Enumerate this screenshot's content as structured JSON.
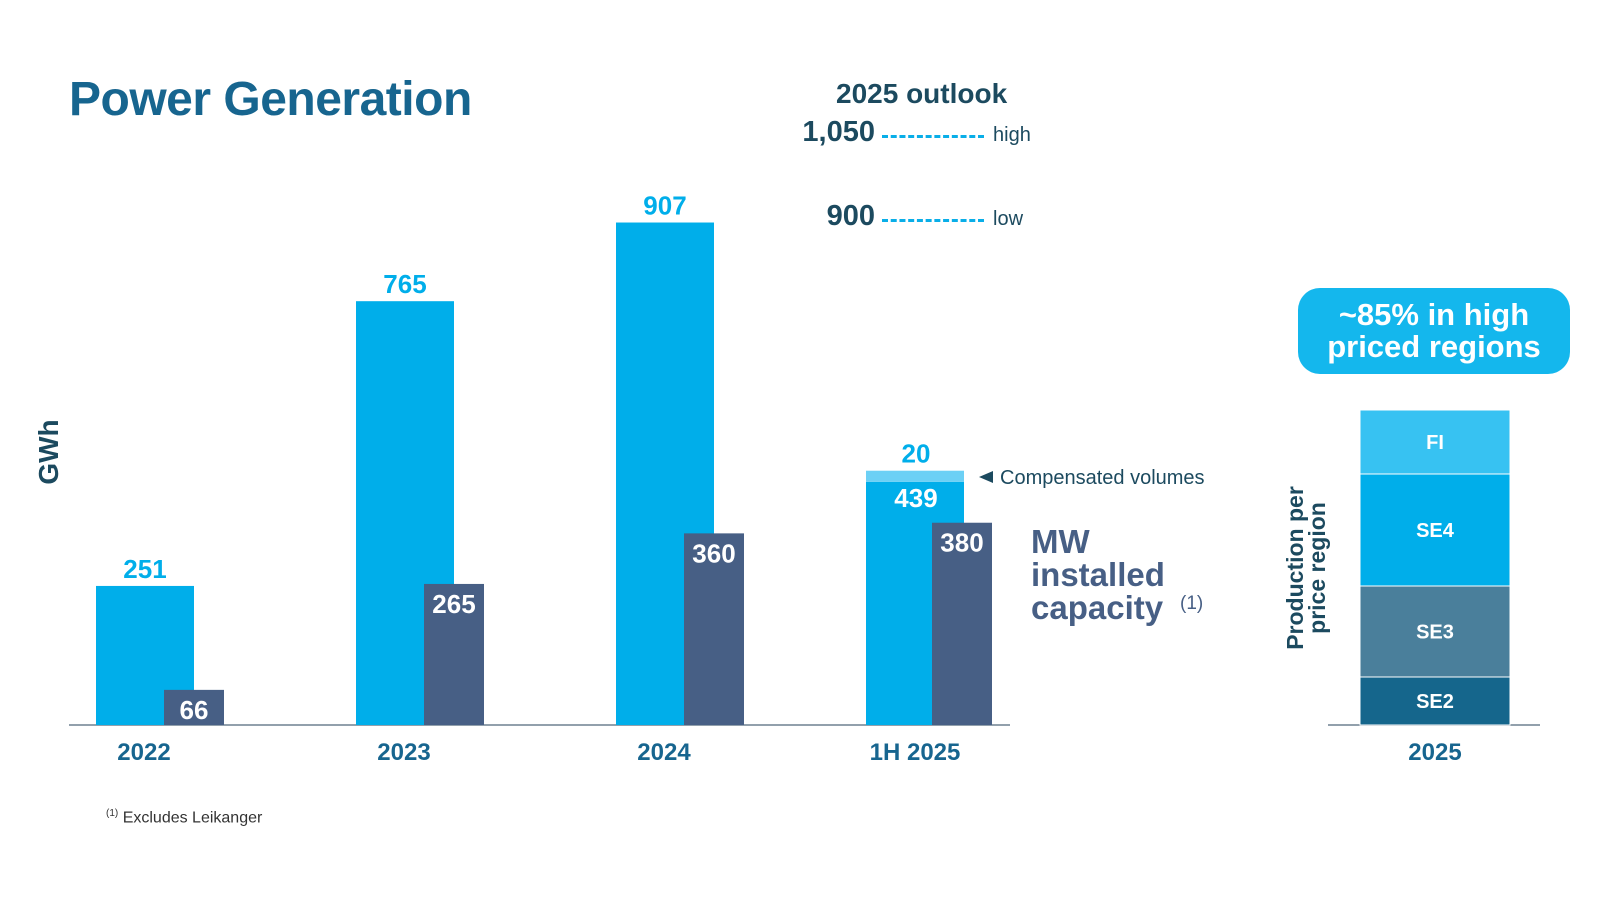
{
  "title": "Power Generation",
  "outlook": {
    "heading": "2025 outlook",
    "high_value": "1,050",
    "high_label": "high",
    "low_value": "900",
    "low_label": "low"
  },
  "callout": {
    "line1": "~85% in high",
    "line2": "priced regions"
  },
  "footnote": {
    "marker": "(1)",
    "text": "Excludes Leikanger"
  },
  "colors": {
    "generation": "#00aeea",
    "compensated": "#6cd0f5",
    "capacity": "#475f85",
    "title": "#17658f",
    "dark_text": "#1c4a5f",
    "FI": "#37c2f2",
    "SE4": "#00aeea",
    "SE3": "#4a7f9b",
    "SE2": "#15668c"
  },
  "chart_data": [
    {
      "type": "bar",
      "ylabel": "GWh",
      "categories": [
        "2022",
        "2023",
        "2024",
        "1H 2025"
      ],
      "series": [
        {
          "values": [
            251,
            765,
            907,
            439
          ],
          "labels": [
            "251",
            "765",
            "907",
            "439"
          ]
        },
        {
          "name": "Compensated volumes",
          "values": [
            null,
            null,
            null,
            20
          ],
          "labels": [
            "",
            "",
            "",
            "20"
          ]
        },
        {
          "name": "MW installed capacity",
          "footnote_marker": "(1)",
          "values": [
            66,
            265,
            360,
            380
          ],
          "labels": [
            "66",
            "265",
            "360",
            "380"
          ]
        }
      ],
      "reference_lines": [
        {
          "label": "high",
          "value": 1050
        },
        {
          "label": "low",
          "value": 900
        }
      ],
      "legend_label_capacity_lines": [
        "MW",
        "installed",
        "capacity"
      ]
    },
    {
      "type": "bar",
      "stacked": true,
      "ylabel_lines": [
        "Production per",
        "price region"
      ],
      "categories": [
        "2025"
      ],
      "segments": [
        "SE2",
        "SE3",
        "SE4",
        "FI"
      ]
    }
  ]
}
